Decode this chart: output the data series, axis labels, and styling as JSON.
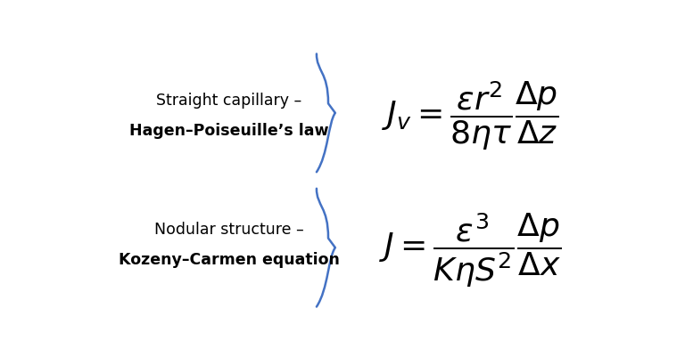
{
  "background_color": "#ffffff",
  "text_color": "#000000",
  "brace_color": "#4472c4",
  "label1_line1": "Straight capillary –",
  "label1_line2": "Hagen–Poiseuille’s law",
  "label2_line1": "Nodular structure –",
  "label2_line2": "Kozeny–Carmen equation",
  "eq1": "$J_v = \\dfrac{\\varepsilon r^2}{8\\eta\\tau}\\dfrac{\\Delta p}{\\Delta z}$",
  "eq2": "$J = \\dfrac{\\varepsilon^3}{K\\eta S^2}\\dfrac{\\Delta p}{\\Delta x}$",
  "figsize": [
    7.68,
    4.01
  ],
  "dpi": 100
}
